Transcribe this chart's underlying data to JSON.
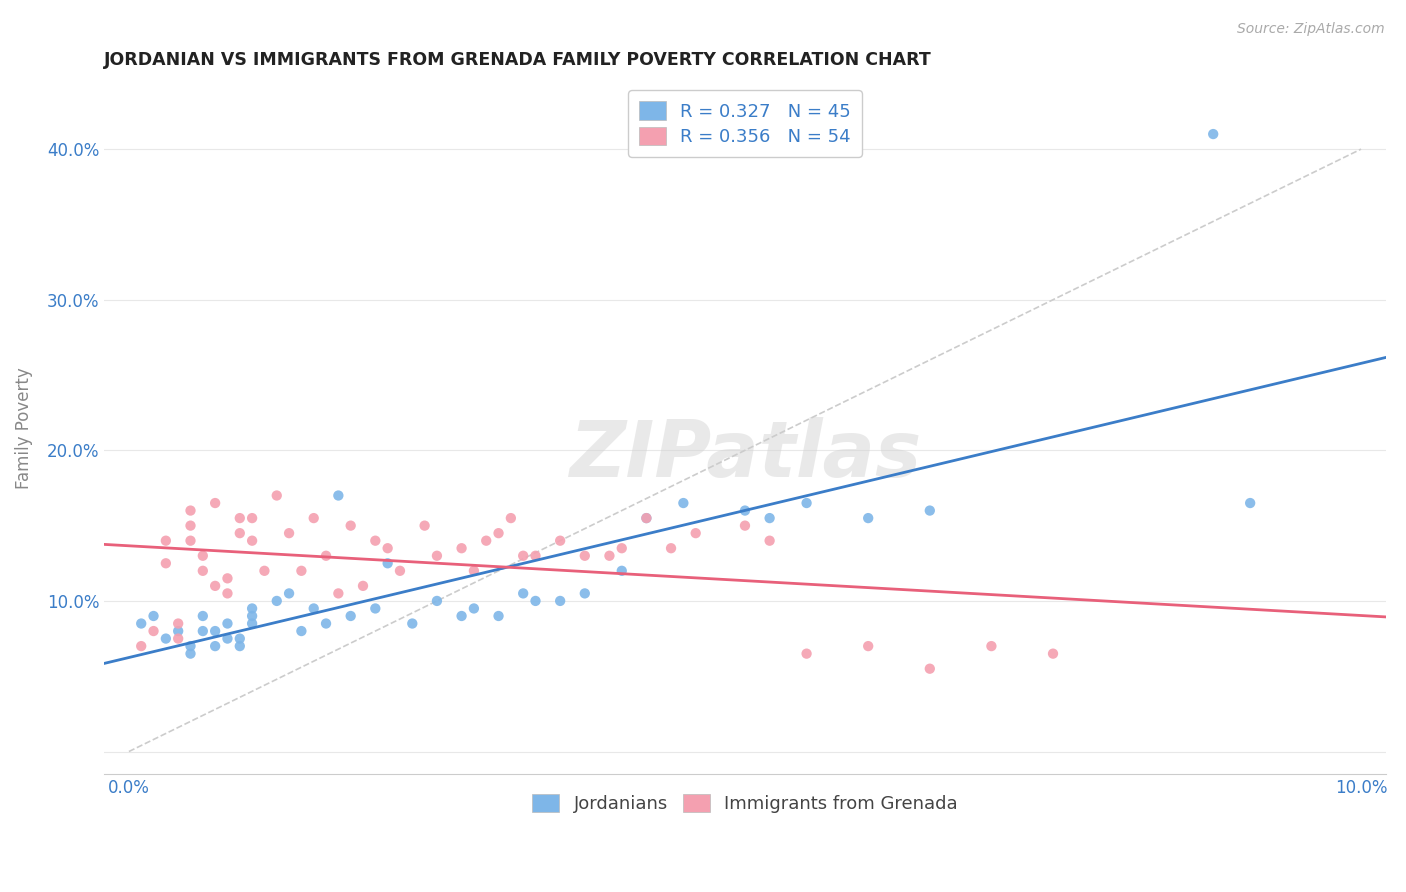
{
  "title": "JORDANIAN VS IMMIGRANTS FROM GRENADA FAMILY POVERTY CORRELATION CHART",
  "source": "Source: ZipAtlas.com",
  "ylabel": "Family Poverty",
  "xlim": [
    -0.002,
    0.102
  ],
  "ylim": [
    -0.015,
    0.445
  ],
  "jordanians_color": "#7EB6E8",
  "grenada_color": "#F4A0B0",
  "jordanians_line_color": "#3B7DC8",
  "grenada_line_color": "#E8607A",
  "R_jordanians": 0.327,
  "N_jordanians": 45,
  "R_grenada": 0.356,
  "N_grenada": 54,
  "legend_label_1": "R = 0.327   N = 45",
  "legend_label_2": "R = 0.356   N = 54",
  "legend_label_3": "Jordanians",
  "legend_label_4": "Immigrants from Grenada",
  "watermark": "ZIPatlas",
  "jordanians_x": [
    0.001,
    0.002,
    0.003,
    0.004,
    0.005,
    0.005,
    0.006,
    0.006,
    0.007,
    0.007,
    0.008,
    0.008,
    0.009,
    0.009,
    0.01,
    0.01,
    0.01,
    0.012,
    0.013,
    0.014,
    0.015,
    0.016,
    0.017,
    0.018,
    0.02,
    0.021,
    0.023,
    0.025,
    0.027,
    0.028,
    0.03,
    0.032,
    0.033,
    0.035,
    0.037,
    0.04,
    0.042,
    0.045,
    0.05,
    0.052,
    0.055,
    0.06,
    0.065,
    0.091,
    0.088
  ],
  "jordanians_y": [
    0.085,
    0.09,
    0.075,
    0.08,
    0.065,
    0.07,
    0.08,
    0.09,
    0.07,
    0.08,
    0.075,
    0.085,
    0.07,
    0.075,
    0.09,
    0.085,
    0.095,
    0.1,
    0.105,
    0.08,
    0.095,
    0.085,
    0.17,
    0.09,
    0.095,
    0.125,
    0.085,
    0.1,
    0.09,
    0.095,
    0.09,
    0.105,
    0.1,
    0.1,
    0.105,
    0.12,
    0.155,
    0.165,
    0.16,
    0.155,
    0.165,
    0.155,
    0.16,
    0.165,
    0.41
  ],
  "grenada_x": [
    0.001,
    0.002,
    0.003,
    0.003,
    0.004,
    0.004,
    0.005,
    0.005,
    0.005,
    0.006,
    0.006,
    0.007,
    0.007,
    0.008,
    0.008,
    0.009,
    0.009,
    0.01,
    0.01,
    0.011,
    0.012,
    0.013,
    0.014,
    0.015,
    0.016,
    0.017,
    0.018,
    0.019,
    0.02,
    0.021,
    0.022,
    0.024,
    0.025,
    0.027,
    0.028,
    0.029,
    0.03,
    0.031,
    0.032,
    0.033,
    0.035,
    0.037,
    0.039,
    0.04,
    0.042,
    0.044,
    0.046,
    0.05,
    0.052,
    0.055,
    0.06,
    0.065,
    0.07,
    0.075
  ],
  "grenada_y": [
    0.07,
    0.08,
    0.125,
    0.14,
    0.075,
    0.085,
    0.14,
    0.15,
    0.16,
    0.12,
    0.13,
    0.11,
    0.165,
    0.105,
    0.115,
    0.145,
    0.155,
    0.14,
    0.155,
    0.12,
    0.17,
    0.145,
    0.12,
    0.155,
    0.13,
    0.105,
    0.15,
    0.11,
    0.14,
    0.135,
    0.12,
    0.15,
    0.13,
    0.135,
    0.12,
    0.14,
    0.145,
    0.155,
    0.13,
    0.13,
    0.14,
    0.13,
    0.13,
    0.135,
    0.155,
    0.135,
    0.145,
    0.15,
    0.14,
    0.065,
    0.07,
    0.055,
    0.07,
    0.065
  ],
  "background_color": "#FFFFFF",
  "grid_color": "#E8E8E8",
  "text_color": "#3B7DC8",
  "axis_label_color": "#888888"
}
